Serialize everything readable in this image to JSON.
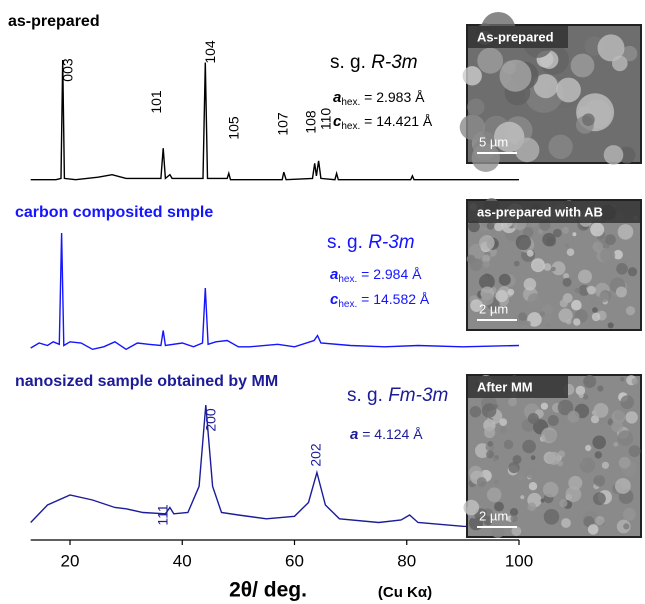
{
  "chart_data": {
    "type": "line",
    "xlabel": "2θ/ deg.",
    "xlabel_note": "(Cu Kα)",
    "xlim": [
      13,
      100
    ],
    "xticks": [
      20,
      40,
      60,
      80,
      100
    ],
    "ylim": [
      0,
      100
    ],
    "series": [
      {
        "name": "as-prepared",
        "color": "#000000",
        "x": [
          13,
          17.5,
          18.4,
          18.7,
          19.0,
          21,
          25,
          27.5,
          30,
          36.2,
          36.6,
          37,
          37.8,
          38.2,
          43.7,
          44.1,
          44.5,
          48,
          48.3,
          48.6,
          57.8,
          58.1,
          58.5,
          63.2,
          63.6,
          63.9,
          64.3,
          64.7,
          67.2,
          67.5,
          67.8,
          80.7,
          81,
          81.3,
          100
        ],
        "values": [
          5,
          5,
          6,
          100,
          6,
          5,
          7,
          9,
          6,
          6,
          30,
          6,
          9,
          6,
          6,
          98,
          6,
          6,
          10,
          5,
          5,
          11,
          5,
          6,
          18,
          8,
          20,
          6,
          5,
          10,
          5,
          5,
          8,
          5,
          5
        ],
        "peaks": [
          {
            "text": "003",
            "x": 18.7
          },
          {
            "text": "101",
            "x": 36.6
          },
          {
            "text": "104",
            "x": 44.1
          },
          {
            "text": "105",
            "x": 48.3
          },
          {
            "text": "107",
            "x": 58.1
          },
          {
            "text": "108",
            "x": 63.6
          },
          {
            "text": "110",
            "x": 64.3
          }
        ],
        "space_group": {
          "prefix": "s. g. ",
          "symbol": "R-3m"
        },
        "lattice": [
          {
            "symbol": "a",
            "subscript": "hex.",
            "value": " = 2.983 Å"
          },
          {
            "symbol": "c",
            "subscript": "hex.",
            "value": " = 14.421 Å"
          }
        ]
      },
      {
        "name": "carbon composited smple",
        "color": "#1515ff",
        "x": [
          13,
          14.5,
          16,
          17,
          18.1,
          18.5,
          18.9,
          20,
          22,
          24,
          26,
          28,
          30,
          32,
          34,
          36.2,
          36.6,
          37,
          40,
          42,
          43.6,
          44.1,
          44.6,
          46,
          48,
          50,
          52,
          57,
          60,
          63.5,
          64.1,
          64.7,
          70,
          76,
          82,
          90,
          100
        ],
        "values": [
          8,
          12,
          10,
          13,
          11,
          100,
          10,
          13,
          12,
          7,
          9,
          13,
          7,
          12,
          11,
          10,
          22,
          10,
          12,
          9,
          12,
          56,
          11,
          13,
          14,
          9,
          9,
          11,
          9,
          14,
          18,
          12,
          10,
          9,
          10,
          9,
          10
        ],
        "peaks": [],
        "space_group": {
          "prefix": "s. g. ",
          "symbol": "R-3m"
        },
        "lattice": [
          {
            "symbol": "a",
            "subscript": "hex.",
            "value": " = 2.984 Å"
          },
          {
            "symbol": "c",
            "subscript": "hex.",
            "value": " = 14.582 Å"
          }
        ]
      },
      {
        "name": "nanosized sample obtained by MM",
        "color": "#1c1c99",
        "x": [
          13,
          16,
          20,
          24,
          28,
          30,
          33,
          37,
          37.8,
          38.5,
          41,
          43,
          44.2,
          45.4,
          47,
          50,
          55,
          60,
          62.5,
          64,
          65.5,
          68,
          75,
          79,
          80.5,
          82,
          90,
          100
        ],
        "values": [
          6,
          20,
          28,
          24,
          18,
          17,
          14,
          13,
          18,
          13,
          14,
          35,
          100,
          35,
          14,
          12,
          9,
          11,
          22,
          46,
          20,
          9,
          6,
          8,
          12,
          6,
          3,
          2
        ],
        "peaks": [
          {
            "text": "111",
            "x": 37.8
          },
          {
            "text": "200",
            "x": 44.2
          },
          {
            "text": "202",
            "x": 64
          }
        ],
        "space_group": {
          "prefix": "s. g. ",
          "symbol": "Fm-3m"
        },
        "lattice": [
          {
            "symbol": "a",
            "subscript": "",
            "value": " = 4.124 Å"
          }
        ]
      }
    ]
  },
  "micrographs": [
    {
      "label": "As-prepared",
      "scale": "5 µm"
    },
    {
      "label": "as-prepared with AB",
      "scale": "2 µm"
    },
    {
      "label": "After MM",
      "scale": "2 µm"
    }
  ]
}
